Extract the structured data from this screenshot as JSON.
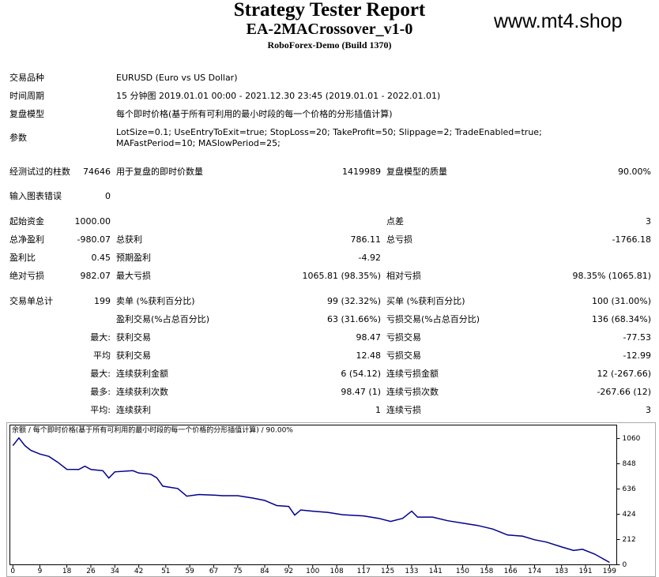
{
  "header": {
    "title": "Strategy Tester Report",
    "expert": "EA-2MACrossover_v1-0",
    "server": "RoboForex-Demo (Build 1370)",
    "watermark": "www.mt4.shop"
  },
  "table": {
    "rows": [
      {
        "l1": "交易品种",
        "info": "EURUSD (Euro vs US Dollar)"
      },
      {
        "l1": "时间周期",
        "info": "15 分钟图 2019.01.01 00:00 - 2021.12.30 23:45 (2019.01.01 - 2022.01.01)"
      },
      {
        "l1": "复盘模型",
        "info": "每个即时价格(基于所有可利用的最小时段的每一个价格的分形插值计算)"
      },
      {
        "l1": "参数",
        "info": "LotSize=0.1; UseEntryToExit=true; StopLoss=20; TakeProfit=50; Slippage=2; TradeEnabled=true; MAFastPeriod=10; MASlowPeriod=25;"
      },
      {
        "l1": "经测试过的柱数",
        "v1": "74646",
        "l2": "用于复盘的即时价数量",
        "v2": "1419989",
        "l3": "复盘模型的质量",
        "v3": "90.00%"
      },
      {
        "l1": "输入图表错误",
        "v1": "0"
      },
      {
        "l1": "起始资金",
        "v1": "1000.00",
        "l3": "点差",
        "v3": "3"
      },
      {
        "l1": "总净盈利",
        "v1": "-980.07",
        "l2": "总获利",
        "v2": "786.11",
        "l3": "总亏损",
        "v3": "-1766.18"
      },
      {
        "l1": "盈利比",
        "v1": "0.45",
        "l2": "预期盈利",
        "v2": "-4.92"
      },
      {
        "l1": "绝对亏损",
        "v1": "982.07",
        "l2": "最大亏损",
        "v2": "1065.81 (98.35%)",
        "l3": "相对亏损",
        "v3": "98.35% (1065.81)"
      },
      {
        "l1": "交易单总计",
        "v1": "199",
        "l2": "卖单 (%获利百分比)",
        "v2": "99 (32.32%)",
        "l3": "买单 (%获利百分比)",
        "v3": "100 (31.00%)"
      },
      {
        "l2": "盈利交易(%占总百分比)",
        "v2": "63 (31.66%)",
        "l3": "亏损交易(%占总百分比)",
        "v3": "136 (68.34%)"
      },
      {
        "v1": "最大:",
        "l2": "获利交易",
        "v2": "98.47",
        "l3": "亏损交易",
        "v3": "-77.53"
      },
      {
        "v1": "平均",
        "l2": "获利交易",
        "v2": "12.48",
        "l3": "亏损交易",
        "v3": "-12.99"
      },
      {
        "v1": "最大:",
        "l2": "连续获利金额",
        "v2": "6 (54.12)",
        "l3": "连续亏损金额",
        "v3": "12 (-267.66)"
      },
      {
        "v1": "最多:",
        "l2": "连续获利次数",
        "v2": "98.47 (1)",
        "l3": "连续亏损次数",
        "v3": "-267.66 (12)"
      },
      {
        "v1": "平均:",
        "l2": "连续获利",
        "v2": "1",
        "l3": "连续亏损",
        "v3": "3"
      }
    ]
  },
  "chart": {
    "type": "line",
    "title": "余额 / 每个即时价格(基于所有可利用的最小时段的每一个价格的分形插值计算) / 90.00%",
    "color": "#00008b",
    "x": [
      0,
      2,
      4,
      6,
      9,
      12,
      15,
      18,
      22,
      24,
      26,
      30,
      32,
      34,
      40,
      42,
      46,
      48,
      50,
      55,
      58,
      62,
      67,
      70,
      75,
      80,
      84,
      88,
      92,
      94,
      96,
      100,
      105,
      110,
      117,
      122,
      126,
      130,
      133,
      135,
      140,
      145,
      150,
      155,
      160,
      165,
      170,
      174,
      178,
      183,
      187,
      190,
      194,
      199
    ],
    "values": [
      1000,
      1065,
      1000,
      960,
      930,
      910,
      860,
      801,
      800,
      828,
      800,
      790,
      728,
      780,
      790,
      770,
      760,
      730,
      660,
      640,
      576,
      590,
      585,
      580,
      580,
      560,
      540,
      497,
      490,
      417,
      460,
      450,
      440,
      420,
      410,
      390,
      364,
      390,
      450,
      400,
      400,
      370,
      350,
      330,
      300,
      250,
      240,
      210,
      190,
      150,
      120,
      130,
      90,
      20
    ],
    "xlim": [
      -1,
      201.4
    ],
    "ylim": [
      0,
      1173
    ],
    "xticks": [
      0,
      9,
      18,
      26,
      34,
      42,
      51,
      59,
      67,
      75,
      84,
      92,
      100,
      108,
      117,
      125,
      133,
      141,
      150,
      158,
      166,
      174,
      183,
      191,
      199
    ],
    "yticks": [
      1060,
      848,
      636,
      424,
      212,
      0
    ]
  }
}
